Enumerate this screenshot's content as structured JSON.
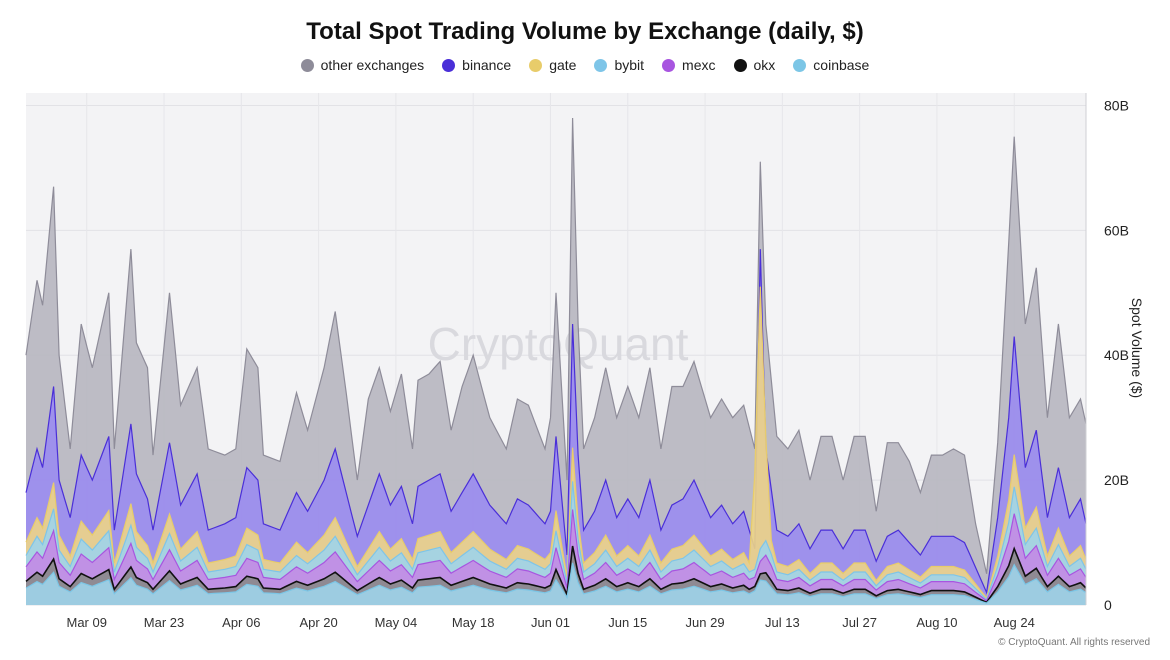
{
  "chart_data": {
    "type": "area",
    "stacked": true,
    "title": "Total Spot Trading Volume by Exchange (daily, $)",
    "ylabel": "Spot Volume ($)",
    "xlabel": "",
    "ylim": [
      0,
      82
    ],
    "y_unit": "B",
    "yticks": [
      0,
      20,
      40,
      60,
      80
    ],
    "ytick_labels": [
      "0",
      "20B",
      "40B",
      "60B",
      "80B"
    ],
    "x_start_date": "2025-02-26",
    "x_end_date": "2025-09-06",
    "xtick_dates": [
      "2025-03-09",
      "2025-03-23",
      "2025-04-06",
      "2025-04-20",
      "2025-05-04",
      "2025-05-18",
      "2025-06-01",
      "2025-06-15",
      "2025-06-29",
      "2025-07-13",
      "2025-07-27",
      "2025-08-10",
      "2025-08-24"
    ],
    "xtick_labels": [
      "Mar 09",
      "Mar 23",
      "Apr 06",
      "Apr 20",
      "May 04",
      "May 18",
      "Jun 01",
      "Jun 15",
      "Jun 29",
      "Jul 13",
      "Jul 27",
      "Aug 10",
      "Aug 24"
    ],
    "grid": true,
    "legend_position": "top-center",
    "watermark": "CryptoQuant",
    "credit": "© CryptoQuant. All rights reserved",
    "series_order_bottom_to_top": [
      "coinbase",
      "okx",
      "mexc",
      "bybit",
      "gate",
      "binance",
      "other exchanges"
    ],
    "legend_order": [
      "other exchanges",
      "binance",
      "gate",
      "bybit",
      "mexc",
      "okx",
      "coinbase"
    ],
    "series": [
      {
        "name": "other exchanges",
        "color": "#8e8c99",
        "fill": "#b9b8c2"
      },
      {
        "name": "binance",
        "color": "#4a2fd8",
        "fill": "#9a8cef"
      },
      {
        "name": "gate",
        "color": "#e8cc6a",
        "fill": "#ecd487"
      },
      {
        "name": "bybit",
        "color": "#7ec5e8",
        "fill": "#9fd4ea"
      },
      {
        "name": "mexc",
        "color": "#a855e0",
        "fill": "#c38ae6"
      },
      {
        "name": "okx",
        "color": "#111111",
        "fill": "#8a8a8a"
      },
      {
        "name": "coinbase",
        "color": "#7cc6e6",
        "fill": "#9fd3ea"
      }
    ],
    "total_keypoints": [
      [
        "2025-02-26",
        40
      ],
      [
        "2025-02-28",
        52
      ],
      [
        "2025-03-01",
        48
      ],
      [
        "2025-03-03",
        67
      ],
      [
        "2025-03-04",
        40
      ],
      [
        "2025-03-06",
        25
      ],
      [
        "2025-03-08",
        45
      ],
      [
        "2025-03-10",
        38
      ],
      [
        "2025-03-13",
        50
      ],
      [
        "2025-03-14",
        25
      ],
      [
        "2025-03-17",
        57
      ],
      [
        "2025-03-18",
        42
      ],
      [
        "2025-03-20",
        38
      ],
      [
        "2025-03-21",
        24
      ],
      [
        "2025-03-24",
        50
      ],
      [
        "2025-03-26",
        32
      ],
      [
        "2025-03-29",
        38
      ],
      [
        "2025-03-31",
        25
      ],
      [
        "2025-04-03",
        24
      ],
      [
        "2025-04-05",
        25
      ],
      [
        "2025-04-07",
        41
      ],
      [
        "2025-04-09",
        38
      ],
      [
        "2025-04-10",
        24
      ],
      [
        "2025-04-13",
        23
      ],
      [
        "2025-04-16",
        34
      ],
      [
        "2025-04-18",
        28
      ],
      [
        "2025-04-21",
        38
      ],
      [
        "2025-04-23",
        47
      ],
      [
        "2025-04-25",
        34
      ],
      [
        "2025-04-27",
        20
      ],
      [
        "2025-04-29",
        33
      ],
      [
        "2025-05-01",
        38
      ],
      [
        "2025-05-03",
        31
      ],
      [
        "2025-05-05",
        37
      ],
      [
        "2025-05-07",
        25
      ],
      [
        "2025-05-08",
        36
      ],
      [
        "2025-05-10",
        37
      ],
      [
        "2025-05-12",
        39
      ],
      [
        "2025-05-14",
        28
      ],
      [
        "2025-05-16",
        35
      ],
      [
        "2025-05-18",
        40
      ],
      [
        "2025-05-21",
        30
      ],
      [
        "2025-05-24",
        25
      ],
      [
        "2025-05-26",
        33
      ],
      [
        "2025-05-28",
        32
      ],
      [
        "2025-05-31",
        25
      ],
      [
        "2025-06-01",
        30
      ],
      [
        "2025-06-02",
        50
      ],
      [
        "2025-06-04",
        20
      ],
      [
        "2025-06-05",
        78
      ],
      [
        "2025-06-06",
        45
      ],
      [
        "2025-06-07",
        25
      ],
      [
        "2025-06-09",
        30
      ],
      [
        "2025-06-11",
        38
      ],
      [
        "2025-06-13",
        30
      ],
      [
        "2025-06-15",
        35
      ],
      [
        "2025-06-17",
        30
      ],
      [
        "2025-06-19",
        38
      ],
      [
        "2025-06-21",
        25
      ],
      [
        "2025-06-23",
        35
      ],
      [
        "2025-06-25",
        35
      ],
      [
        "2025-06-27",
        39
      ],
      [
        "2025-06-30",
        30
      ],
      [
        "2025-07-02",
        33
      ],
      [
        "2025-07-04",
        30
      ],
      [
        "2025-07-06",
        32
      ],
      [
        "2025-07-08",
        25
      ],
      [
        "2025-07-09",
        71
      ],
      [
        "2025-07-10",
        45
      ],
      [
        "2025-07-12",
        27
      ],
      [
        "2025-07-14",
        25
      ],
      [
        "2025-07-16",
        28
      ],
      [
        "2025-07-18",
        20
      ],
      [
        "2025-07-20",
        27
      ],
      [
        "2025-07-22",
        27
      ],
      [
        "2025-07-24",
        20
      ],
      [
        "2025-07-26",
        27
      ],
      [
        "2025-07-28",
        27
      ],
      [
        "2025-07-30",
        15
      ],
      [
        "2025-08-01",
        26
      ],
      [
        "2025-08-03",
        26
      ],
      [
        "2025-08-05",
        23
      ],
      [
        "2025-08-07",
        18
      ],
      [
        "2025-08-09",
        24
      ],
      [
        "2025-08-11",
        24
      ],
      [
        "2025-08-13",
        25
      ],
      [
        "2025-08-15",
        24
      ],
      [
        "2025-08-17",
        13
      ],
      [
        "2025-08-19",
        5
      ],
      [
        "2025-08-21",
        26
      ],
      [
        "2025-08-23",
        58
      ],
      [
        "2025-08-24",
        75
      ],
      [
        "2025-08-26",
        45
      ],
      [
        "2025-08-28",
        54
      ],
      [
        "2025-08-30",
        30
      ],
      [
        "2025-09-01",
        45
      ],
      [
        "2025-09-03",
        30
      ],
      [
        "2025-09-05",
        33
      ],
      [
        "2025-09-06",
        29
      ]
    ],
    "binance_top_keypoints": [
      [
        "2025-02-26",
        18
      ],
      [
        "2025-02-28",
        25
      ],
      [
        "2025-03-01",
        22
      ],
      [
        "2025-03-03",
        35
      ],
      [
        "2025-03-04",
        20
      ],
      [
        "2025-03-06",
        14
      ],
      [
        "2025-03-08",
        24
      ],
      [
        "2025-03-10",
        20
      ],
      [
        "2025-03-13",
        27
      ],
      [
        "2025-03-14",
        12
      ],
      [
        "2025-03-17",
        29
      ],
      [
        "2025-03-18",
        21
      ],
      [
        "2025-03-20",
        17
      ],
      [
        "2025-03-21",
        12
      ],
      [
        "2025-03-24",
        26
      ],
      [
        "2025-03-26",
        16
      ],
      [
        "2025-03-29",
        21
      ],
      [
        "2025-03-31",
        12
      ],
      [
        "2025-04-03",
        13
      ],
      [
        "2025-04-05",
        14
      ],
      [
        "2025-04-07",
        22
      ],
      [
        "2025-04-09",
        20
      ],
      [
        "2025-04-10",
        13
      ],
      [
        "2025-04-13",
        12
      ],
      [
        "2025-04-16",
        18
      ],
      [
        "2025-04-18",
        15
      ],
      [
        "2025-04-21",
        20
      ],
      [
        "2025-04-23",
        25
      ],
      [
        "2025-04-25",
        18
      ],
      [
        "2025-04-27",
        11
      ],
      [
        "2025-04-29",
        16
      ],
      [
        "2025-05-01",
        21
      ],
      [
        "2025-05-03",
        16
      ],
      [
        "2025-05-05",
        19
      ],
      [
        "2025-05-07",
        13
      ],
      [
        "2025-05-08",
        19
      ],
      [
        "2025-05-10",
        20
      ],
      [
        "2025-05-12",
        21
      ],
      [
        "2025-05-14",
        15
      ],
      [
        "2025-05-16",
        18
      ],
      [
        "2025-05-18",
        21
      ],
      [
        "2025-05-21",
        16
      ],
      [
        "2025-05-24",
        13
      ],
      [
        "2025-05-26",
        17
      ],
      [
        "2025-05-28",
        16
      ],
      [
        "2025-05-31",
        13
      ],
      [
        "2025-06-01",
        15
      ],
      [
        "2025-06-02",
        27
      ],
      [
        "2025-06-04",
        8
      ],
      [
        "2025-06-05",
        45
      ],
      [
        "2025-06-06",
        24
      ],
      [
        "2025-06-07",
        12
      ],
      [
        "2025-06-09",
        15
      ],
      [
        "2025-06-11",
        20
      ],
      [
        "2025-06-13",
        14
      ],
      [
        "2025-06-15",
        17
      ],
      [
        "2025-06-17",
        14
      ],
      [
        "2025-06-19",
        20
      ],
      [
        "2025-06-21",
        12
      ],
      [
        "2025-06-23",
        16
      ],
      [
        "2025-06-25",
        17
      ],
      [
        "2025-06-27",
        20
      ],
      [
        "2025-06-30",
        14
      ],
      [
        "2025-07-02",
        16
      ],
      [
        "2025-07-04",
        13
      ],
      [
        "2025-07-06",
        15
      ],
      [
        "2025-07-08",
        9
      ],
      [
        "2025-07-09",
        57
      ],
      [
        "2025-07-10",
        25
      ],
      [
        "2025-07-12",
        12
      ],
      [
        "2025-07-14",
        11
      ],
      [
        "2025-07-16",
        13
      ],
      [
        "2025-07-18",
        9
      ],
      [
        "2025-07-20",
        12
      ],
      [
        "2025-07-22",
        12
      ],
      [
        "2025-07-24",
        9
      ],
      [
        "2025-07-26",
        12
      ],
      [
        "2025-07-28",
        12
      ],
      [
        "2025-07-30",
        7
      ],
      [
        "2025-08-01",
        11
      ],
      [
        "2025-08-03",
        12
      ],
      [
        "2025-08-05",
        10
      ],
      [
        "2025-08-07",
        8
      ],
      [
        "2025-08-09",
        11
      ],
      [
        "2025-08-11",
        11
      ],
      [
        "2025-08-13",
        11
      ],
      [
        "2025-08-15",
        10
      ],
      [
        "2025-08-17",
        6
      ],
      [
        "2025-08-19",
        2
      ],
      [
        "2025-08-21",
        14
      ],
      [
        "2025-08-23",
        30
      ],
      [
        "2025-08-24",
        43
      ],
      [
        "2025-08-26",
        22
      ],
      [
        "2025-08-28",
        28
      ],
      [
        "2025-08-30",
        14
      ],
      [
        "2025-09-01",
        22
      ],
      [
        "2025-09-03",
        14
      ],
      [
        "2025-09-05",
        17
      ],
      [
        "2025-09-06",
        13
      ]
    ],
    "lower_layer_fractions_of_binance_top": {
      "gate": 0.56,
      "bybit": 0.44,
      "mexc": 0.34,
      "okx": 0.21,
      "coinbase": 0.15
    },
    "gate_spike": {
      "date": "2025-07-09",
      "gate_top": 51,
      "bybit_top": 9,
      "mexc_top": 7,
      "okx_top": 5,
      "coinbase_top": 4
    },
    "annotation_total_peak": {
      "date": "2025-06-05",
      "value": 78
    }
  },
  "legend": {
    "items": [
      {
        "label": "other exchanges",
        "color": "#8e8c99"
      },
      {
        "label": "binance",
        "color": "#4a2fd8"
      },
      {
        "label": "gate",
        "color": "#e8cc6a"
      },
      {
        "label": "bybit",
        "color": "#7ec5e8"
      },
      {
        "label": "mexc",
        "color": "#a855e0"
      },
      {
        "label": "okx",
        "color": "#111111"
      },
      {
        "label": "coinbase",
        "color": "#7cc6e6"
      }
    ]
  }
}
